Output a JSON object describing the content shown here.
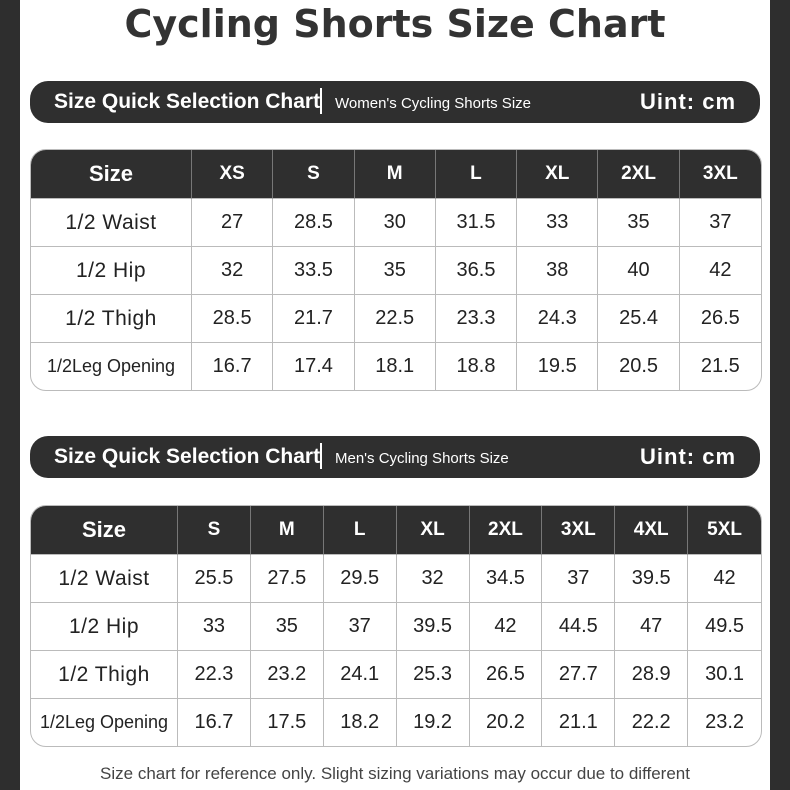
{
  "title": "Cycling Shorts Size Chart",
  "sections": [
    {
      "banner": {
        "title": "Size Quick Selection Chart",
        "subtitle": "Women's Cycling Shorts Size",
        "unit": "Uint: cm"
      },
      "table": {
        "header": {
          "label": "Size",
          "sizes": [
            "XS",
            "S",
            "M",
            "L",
            "XL",
            "2XL",
            "3XL"
          ]
        },
        "rows": [
          {
            "label": "1/2 Waist",
            "values": [
              27,
              28.5,
              30,
              31.5,
              33,
              35,
              37
            ]
          },
          {
            "label": "1/2 Hip",
            "values": [
              32,
              33.5,
              35,
              36.5,
              38,
              40,
              42
            ]
          },
          {
            "label": "1/2 Thigh",
            "values": [
              28.5,
              21.7,
              22.5,
              23.3,
              24.3,
              25.4,
              26.5
            ]
          },
          {
            "label": "1/2Leg Opening",
            "values": [
              16.7,
              17.4,
              18.1,
              18.8,
              19.5,
              20.5,
              21.5
            ]
          }
        ]
      }
    },
    {
      "banner": {
        "title": "Size Quick Selection Chart",
        "subtitle": "Men's Cycling Shorts Size",
        "unit": "Uint: cm"
      },
      "table": {
        "header": {
          "label": "Size",
          "sizes": [
            "S",
            "M",
            "L",
            "XL",
            "2XL",
            "3XL",
            "4XL",
            "5XL"
          ]
        },
        "rows": [
          {
            "label": "1/2 Waist",
            "values": [
              25.5,
              27.5,
              29.5,
              32,
              34.5,
              37,
              39.5,
              42
            ]
          },
          {
            "label": "1/2 Hip",
            "values": [
              33,
              35,
              37,
              39.5,
              42,
              44.5,
              47,
              49.5
            ]
          },
          {
            "label": "1/2 Thigh",
            "values": [
              22.3,
              23.2,
              24.1,
              25.3,
              26.5,
              27.7,
              28.9,
              30.1
            ]
          },
          {
            "label": "1/2Leg Opening",
            "values": [
              16.7,
              17.5,
              18.2,
              19.2,
              20.2,
              21.1,
              22.2,
              23.2
            ]
          }
        ]
      }
    }
  ],
  "footnote": "Size chart for reference only. Slight sizing variations may occur due to different"
}
